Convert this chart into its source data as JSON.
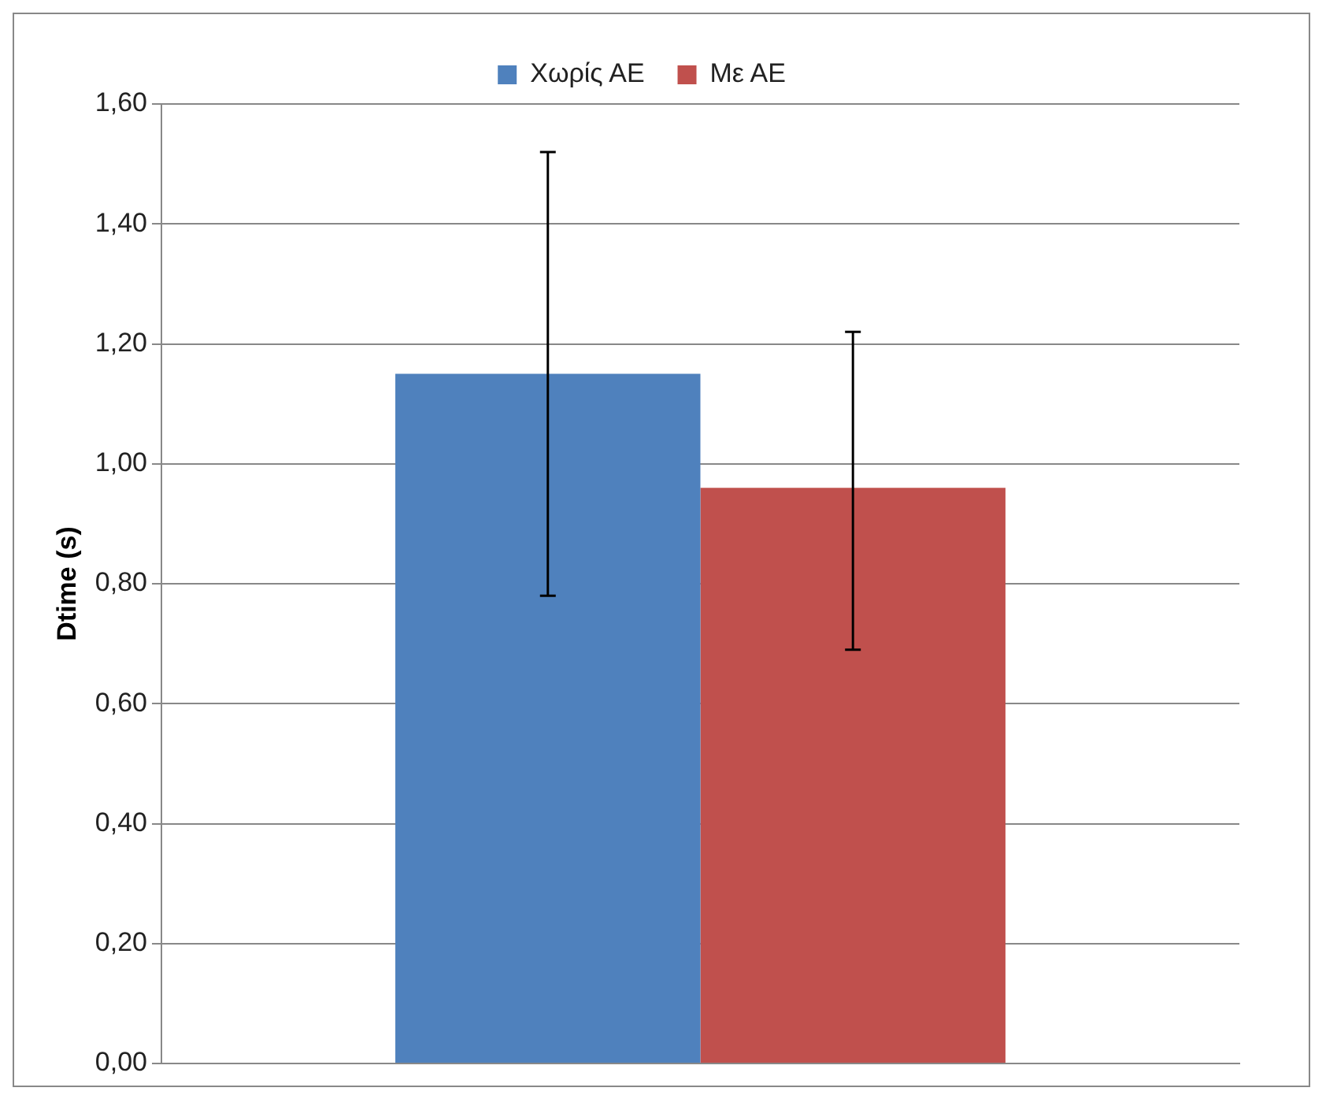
{
  "chart_data": {
    "type": "bar",
    "ylabel": "Dtime (s)",
    "categories": [
      null
    ],
    "series": [
      {
        "name": "Χωρίς ΑΕ",
        "color": "#4f81bd",
        "values": [
          1.15
        ],
        "errors": [
          [
            0.78,
            1.52
          ]
        ]
      },
      {
        "name": "Με ΑΕ",
        "color": "#c0504d",
        "values": [
          0.96
        ],
        "errors": [
          [
            0.69,
            1.22
          ]
        ]
      }
    ],
    "ylim": [
      0,
      1.6
    ],
    "yticks": [
      {
        "value": 0,
        "label": "0,00"
      },
      {
        "value": 0.2,
        "label": "0,20"
      },
      {
        "value": 0.4,
        "label": "0,40"
      },
      {
        "value": 0.6,
        "label": "0,60"
      },
      {
        "value": 0.8,
        "label": "0,80"
      },
      {
        "value": 1,
        "label": "1,00"
      },
      {
        "value": 1.2,
        "label": "1,20"
      },
      {
        "value": 1.4,
        "label": "1,40"
      },
      {
        "value": 1.6,
        "label": "1,60"
      }
    ],
    "grid": "y",
    "legend": "top",
    "tick_labels": "y"
  }
}
